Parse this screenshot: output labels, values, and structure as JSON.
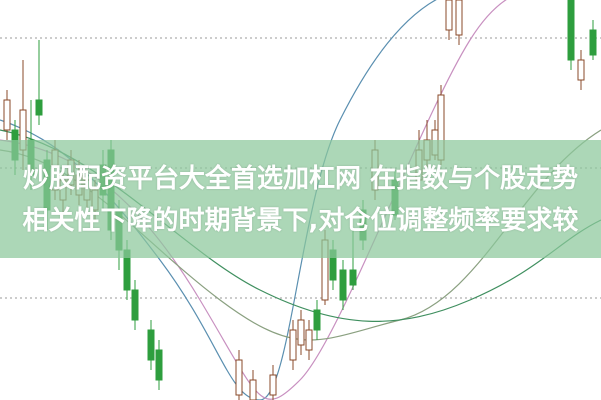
{
  "headline": {
    "line1": "炒股配资平台大全首选加杠网 在指数与个股走势",
    "line2": "相关性下降的时期背景下,对仓位调整频率要求较"
  },
  "colors": {
    "up_candle": "#ffffff",
    "down_candle": "#2e9e3e",
    "banner": "#8cc89b",
    "ma_lines": [
      "#5a8fb0",
      "#c890c0",
      "#8aa080",
      "#3f8f5f"
    ]
  }
}
